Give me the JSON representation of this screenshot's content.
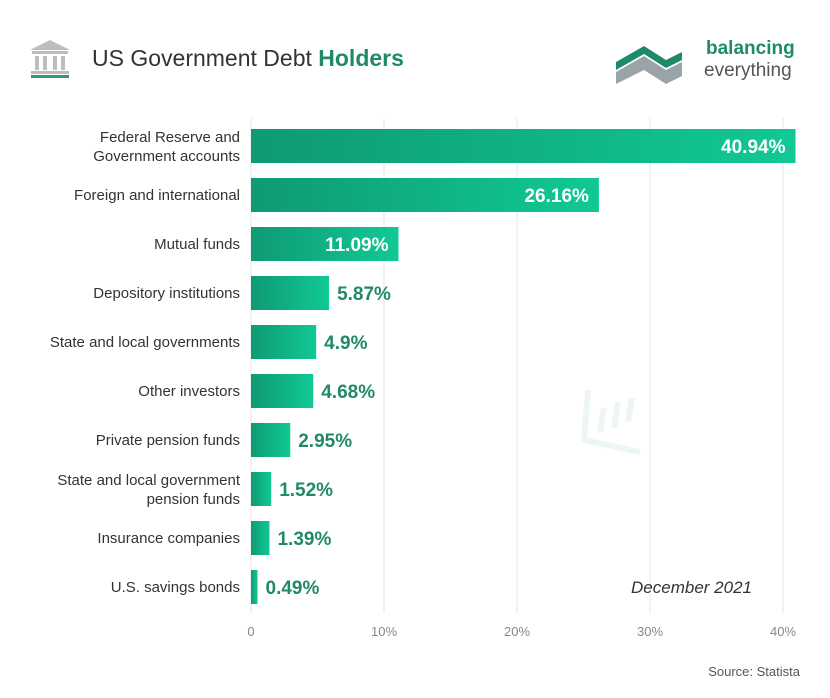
{
  "header": {
    "title_prefix": "US Government Debt ",
    "title_emphasis": "Holders",
    "icon": "bank-building-icon"
  },
  "logo": {
    "line1": "balancing",
    "line2": "everything",
    "icon": "balancing-everything-logo-mark"
  },
  "chart_data": {
    "type": "bar",
    "orientation": "horizontal",
    "categories": [
      [
        "Federal Reserve and",
        "Government accounts"
      ],
      [
        "Foreign and international"
      ],
      [
        "Mutual funds"
      ],
      [
        "Depository institutions"
      ],
      [
        "State and local governments"
      ],
      [
        "Other investors"
      ],
      [
        "Private pension funds"
      ],
      [
        "State and local government",
        "pension funds"
      ],
      [
        "Insurance companies"
      ],
      [
        "U.S. savings bonds"
      ]
    ],
    "values": [
      40.94,
      26.16,
      11.09,
      5.87,
      4.9,
      4.68,
      2.95,
      1.52,
      1.39,
      0.49
    ],
    "value_labels": [
      "40.94%",
      "26.16%",
      "11.09%",
      "5.87%",
      "4.9%",
      "4.68%",
      "2.95%",
      "1.52%",
      "1.39%",
      "0.49%"
    ],
    "xlim": [
      0,
      40
    ],
    "x_ticks": [
      0,
      10,
      20,
      30,
      40
    ],
    "x_tick_labels": [
      "0",
      "10%",
      "20%",
      "30%",
      "40%"
    ],
    "grid": "vertical",
    "colors": {
      "bar_dark": "#0f9a74",
      "bar_light": "#10c994",
      "label": "#1f8a6a"
    }
  },
  "annotation": "December 2021",
  "source": "Source: Statista"
}
